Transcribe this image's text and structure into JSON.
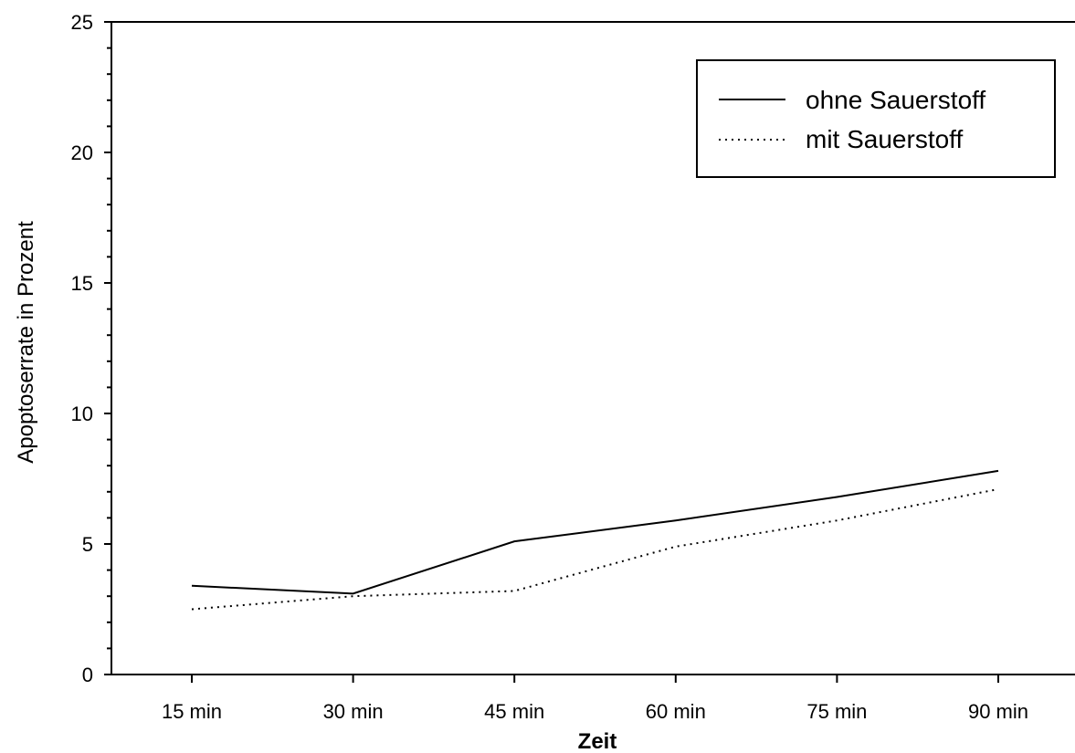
{
  "chart_data": {
    "type": "line",
    "title": "",
    "xlabel": "Zeit",
    "ylabel": "Apoptoserrate in Prozent",
    "categories": [
      "15 min",
      "30 min",
      "45 min",
      "60 min",
      "75 min",
      "90 min"
    ],
    "ylim": [
      0,
      25
    ],
    "yticks": [
      0,
      5,
      10,
      15,
      20,
      25
    ],
    "grid": false,
    "legend_position": "top-right",
    "series": [
      {
        "name": "ohne Sauerstoff",
        "style": "solid",
        "color": "#000000",
        "values": [
          3.4,
          3.1,
          5.1,
          5.9,
          6.8,
          7.8
        ]
      },
      {
        "name": "mit Sauerstoff",
        "style": "dotted",
        "color": "#000000",
        "values": [
          2.5,
          3.0,
          3.2,
          4.9,
          5.9,
          7.1
        ]
      }
    ]
  }
}
